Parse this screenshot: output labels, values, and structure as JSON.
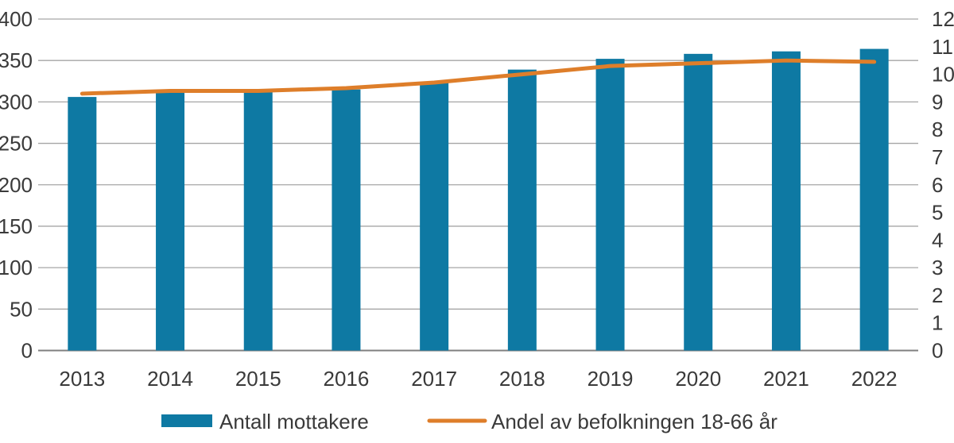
{
  "figure": {
    "background": "#ffffff",
    "text_color": "#3a3a3a",
    "gridline_color": "#a6a6a6",
    "baseline_color": "#7f7f7f"
  },
  "chart_data": {
    "type": "bar",
    "subtype": "combo-bar-line",
    "title": "",
    "xlabel": "",
    "ylabel_left": "",
    "ylabel_right": "",
    "grid": true,
    "legend_position": "bottom",
    "categories": [
      "2013",
      "2014",
      "2015",
      "2016",
      "2017",
      "2018",
      "2019",
      "2020",
      "2021",
      "2022"
    ],
    "left_axis": {
      "min": 0,
      "max": 400,
      "step": 50,
      "ticks": [
        0,
        50,
        100,
        150,
        200,
        250,
        300,
        350,
        400
      ]
    },
    "right_axis": {
      "min": 0,
      "max": 12,
      "step": 1,
      "ticks": [
        0,
        1,
        2,
        3,
        4,
        5,
        6,
        7,
        8,
        9,
        10,
        11,
        12
      ]
    },
    "series": [
      {
        "name": "Antall mottakere",
        "type": "bar",
        "axis": "left",
        "color": "#0e79a3",
        "values": [
          306,
          312,
          313,
          315,
          323,
          339,
          352,
          358,
          361,
          364
        ]
      },
      {
        "name": "Andel av befolkningen 18-66 år",
        "type": "line",
        "axis": "right",
        "color": "#de7e2a",
        "values": [
          9.3,
          9.4,
          9.4,
          9.5,
          9.7,
          10.0,
          10.3,
          10.4,
          10.5,
          10.45
        ]
      }
    ]
  }
}
